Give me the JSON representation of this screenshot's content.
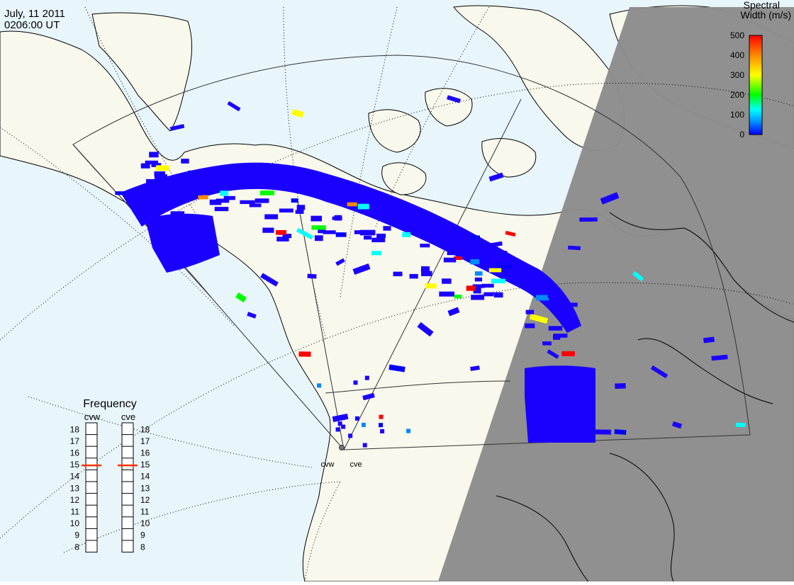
{
  "header": {
    "date": "July, 11 2011",
    "time": "0206:00 UT"
  },
  "colorbar": {
    "title_line1": "Spectral",
    "title_line2": "Width (m/s)",
    "ticks": [
      "500",
      "400",
      "300",
      "200",
      "100",
      "0"
    ],
    "colors": [
      "#ff0000",
      "#ff8800",
      "#ffff00",
      "#00ff00",
      "#00ffff",
      "#0088ff",
      "#0000ff"
    ]
  },
  "frequency_panel": {
    "title": "Frequency",
    "radars": [
      {
        "code": "cvw",
        "selected_mhz": 15
      },
      {
        "code": "cve",
        "selected_mhz": 15
      }
    ],
    "ticks": [
      "18",
      "17",
      "16",
      "15",
      "14",
      "13",
      "12",
      "11",
      "10",
      "9",
      "8"
    ]
  },
  "radar_sites": [
    {
      "code": "cvw"
    },
    {
      "code": "cve"
    }
  ],
  "map_colors": {
    "ocean": "#e8f6fc",
    "land": "#f8f8ec",
    "night": "#8c8c8c",
    "scatter": "#1a00ff"
  }
}
